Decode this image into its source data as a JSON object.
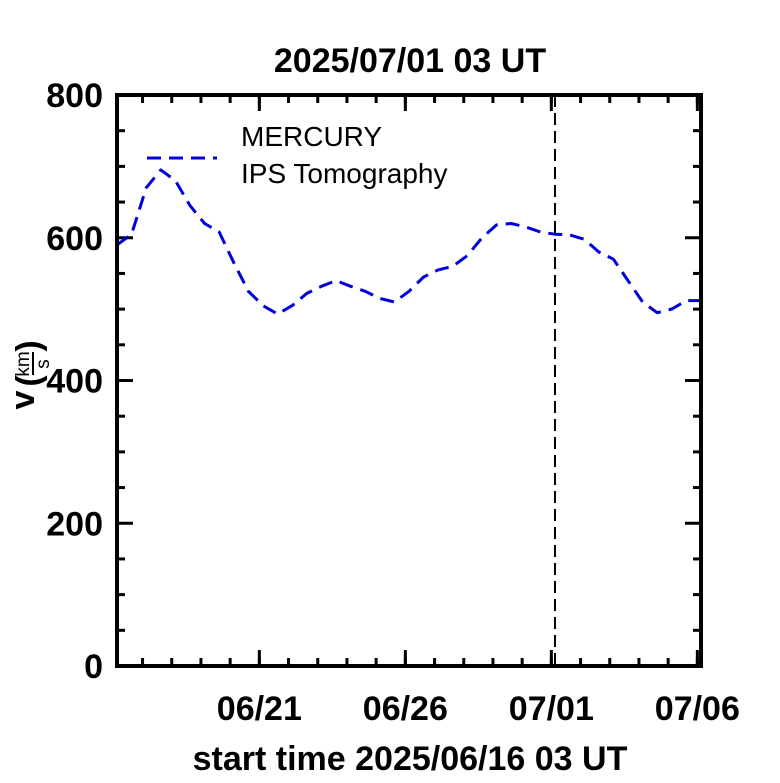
{
  "chart_data": {
    "type": "line",
    "title": "2025/07/01 03 UT",
    "xlabel": "start time 2025/06/16 03 UT",
    "ylabel": "v",
    "ylabel_unit_numerator": "km",
    "ylabel_unit_denominator": "s",
    "ylim": [
      0,
      800
    ],
    "y_ticks": [
      0,
      200,
      400,
      600,
      800
    ],
    "y_tick_labels": [
      "0",
      "200",
      "400",
      "600",
      "800"
    ],
    "x_start": "2025-06-16T03:00",
    "x_end": "2025-07-06T03:00",
    "x_tick_dates": [
      "2025-06-21T00:00",
      "2025-06-26T00:00",
      "2025-07-01T00:00",
      "2025-07-06T00:00"
    ],
    "x_tick_labels": [
      "06/21",
      "06/26",
      "07/01",
      "07/06"
    ],
    "current_time_marker": "2025-07-01T03:00",
    "legend": {
      "placement": "top-left",
      "entries": [
        "MERCURY",
        "IPS Tomography"
      ]
    },
    "series": [
      {
        "name": "MERCURY",
        "color": "#0000dd",
        "style": "dashed",
        "x": [
          "2025-06-16T03:00",
          "2025-06-16T15:00",
          "2025-06-17T03:00",
          "2025-06-17T15:00",
          "2025-06-18T03:00",
          "2025-06-18T15:00",
          "2025-06-19T03:00",
          "2025-06-19T15:00",
          "2025-06-20T03:00",
          "2025-06-20T15:00",
          "2025-06-21T03:00",
          "2025-06-21T15:00",
          "2025-06-22T03:00",
          "2025-06-22T15:00",
          "2025-06-23T03:00",
          "2025-06-23T15:00",
          "2025-06-24T03:00",
          "2025-06-24T15:00",
          "2025-06-25T03:00",
          "2025-06-25T15:00",
          "2025-06-26T03:00",
          "2025-06-26T15:00",
          "2025-06-27T03:00",
          "2025-06-27T15:00",
          "2025-06-28T03:00",
          "2025-06-28T15:00",
          "2025-06-29T03:00",
          "2025-06-29T15:00",
          "2025-06-30T03:00",
          "2025-06-30T15:00",
          "2025-07-01T03:00",
          "2025-07-01T15:00",
          "2025-07-02T03:00",
          "2025-07-02T15:00",
          "2025-07-03T03:00",
          "2025-07-03T15:00",
          "2025-07-04T03:00",
          "2025-07-04T15:00",
          "2025-07-05T03:00",
          "2025-07-05T15:00",
          "2025-07-06T03:00"
        ],
        "values": [
          590,
          605,
          670,
          695,
          680,
          645,
          620,
          608,
          565,
          525,
          505,
          493,
          505,
          522,
          532,
          540,
          532,
          525,
          515,
          510,
          525,
          545,
          555,
          560,
          575,
          600,
          618,
          620,
          615,
          608,
          605,
          604,
          598,
          580,
          570,
          540,
          510,
          495,
          500,
          512,
          512
        ]
      }
    ]
  }
}
